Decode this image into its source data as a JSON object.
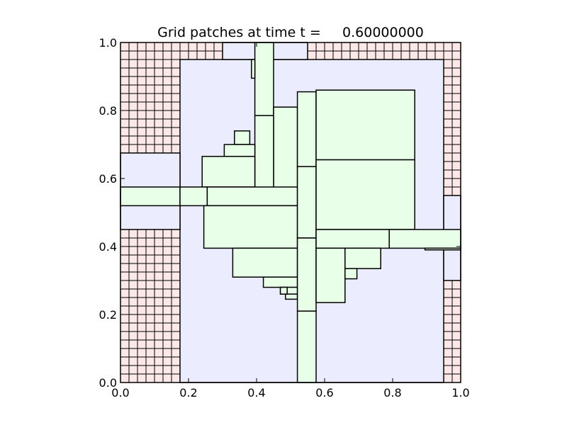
{
  "chart_data": {
    "type": "grid-patches",
    "title": "Grid patches at time t =     0.60000000",
    "xlim": [
      0.0,
      1.0
    ],
    "ylim": [
      0.0,
      1.0
    ],
    "xticks": [
      "0.0",
      "0.2",
      "0.4",
      "0.6",
      "0.8",
      "1.0"
    ],
    "yticks": [
      "0.0",
      "0.2",
      "0.4",
      "0.6",
      "0.8",
      "1.0"
    ],
    "colors": {
      "level1": "#fde8e8",
      "level2": "#ececff",
      "level3": "#e8ffe8",
      "edge": "#000000"
    },
    "fine_grid": {
      "cell_size": 0.025,
      "regions": [
        {
          "x0": 0.0,
          "x1": 0.175,
          "y0": 0.675,
          "y1": 1.0
        },
        {
          "x0": 0.0,
          "x1": 0.175,
          "y0": 0.0,
          "y1": 0.45
        },
        {
          "x0": 0.175,
          "x1": 0.3,
          "y0": 0.95,
          "y1": 1.0
        },
        {
          "x0": 0.55,
          "x1": 1.0,
          "y0": 0.95,
          "y1": 1.0
        },
        {
          "x0": 0.95,
          "x1": 1.0,
          "y0": 0.55,
          "y1": 0.95
        },
        {
          "x0": 0.95,
          "x1": 1.0,
          "y0": 0.0,
          "y1": 0.3
        }
      ]
    },
    "level2_patches": [
      [
        0.175,
        0.95,
        0.0,
        0.95
      ],
      [
        0.3,
        0.55,
        0.95,
        1.0
      ],
      [
        0.0,
        0.175,
        0.45,
        0.675
      ],
      [
        0.95,
        1.0,
        0.3,
        0.55
      ]
    ],
    "level3_patches": [
      [
        0.395,
        0.45,
        0.785,
        1.0
      ],
      [
        0.385,
        0.395,
        0.895,
        0.95
      ],
      [
        0.45,
        0.52,
        0.45,
        0.81
      ],
      [
        0.395,
        0.45,
        0.45,
        0.785
      ],
      [
        0.335,
        0.38,
        0.7,
        0.74
      ],
      [
        0.305,
        0.395,
        0.665,
        0.7
      ],
      [
        0.24,
        0.395,
        0.575,
        0.665
      ],
      [
        0.0,
        0.175,
        0.52,
        0.575
      ],
      [
        0.175,
        0.255,
        0.52,
        0.575
      ],
      [
        0.255,
        0.52,
        0.52,
        0.575
      ],
      [
        0.245,
        0.52,
        0.395,
        0.52
      ],
      [
        0.33,
        0.52,
        0.31,
        0.395
      ],
      [
        0.42,
        0.52,
        0.28,
        0.31
      ],
      [
        0.47,
        0.52,
        0.26,
        0.28
      ],
      [
        0.47,
        0.49,
        0.26,
        0.28
      ],
      [
        0.485,
        0.52,
        0.245,
        0.26
      ],
      [
        0.52,
        0.575,
        0.635,
        0.855
      ],
      [
        0.52,
        0.575,
        0.425,
        0.635
      ],
      [
        0.52,
        0.575,
        0.21,
        0.425
      ],
      [
        0.52,
        0.575,
        0.0,
        0.21
      ],
      [
        0.575,
        0.865,
        0.655,
        0.86
      ],
      [
        0.575,
        0.865,
        0.45,
        0.655
      ],
      [
        0.575,
        0.79,
        0.395,
        0.45
      ],
      [
        0.79,
        1.0,
        0.395,
        0.45
      ],
      [
        0.575,
        0.66,
        0.235,
        0.395
      ],
      [
        0.66,
        0.765,
        0.335,
        0.395
      ],
      [
        0.66,
        0.695,
        0.305,
        0.335
      ],
      [
        0.895,
        1.0,
        0.39,
        0.395
      ]
    ]
  }
}
